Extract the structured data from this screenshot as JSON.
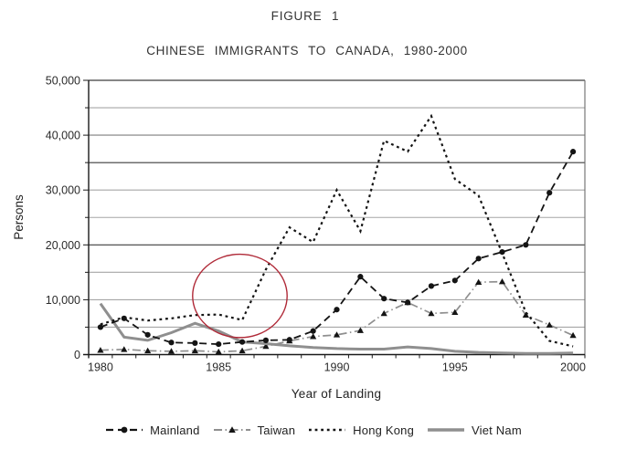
{
  "figure": {
    "title": "FIGURE 1",
    "subtitle": "CHINESE IMMIGRANTS TO CANADA, 1980-2000"
  },
  "axes": {
    "y_label": "Persons",
    "x_label": "Year of Landing",
    "y_tick_labels": [
      "0",
      "10,000",
      "20,000",
      "30,000",
      "40,000",
      "50,000"
    ],
    "x_tick_labels": [
      "1980",
      "1985",
      "1990",
      "1995",
      "2000"
    ]
  },
  "chart_data": {
    "type": "line",
    "title": "CHINESE IMMIGRANTS TO CANADA, 1980-2000",
    "xlabel": "Year of Landing",
    "ylabel": "Persons",
    "ylim": [
      0,
      50000
    ],
    "y_major_tick": 10000,
    "gridline_step": 5000,
    "grid": true,
    "legend_position": "bottom",
    "categories": [
      1980,
      1981,
      1982,
      1983,
      1984,
      1985,
      1986,
      1987,
      1988,
      1989,
      1990,
      1991,
      1992,
      1993,
      1994,
      1995,
      1996,
      1997,
      1998,
      1999,
      2000
    ],
    "series": [
      {
        "name": "Mainland",
        "color": "#141414",
        "line_style": "dashed",
        "marker": "circle",
        "values": [
          5000,
          6600,
          3600,
          2200,
          2100,
          1900,
          2300,
          2600,
          2700,
          4300,
          8200,
          14200,
          10200,
          9500,
          12500,
          13500,
          17500,
          18700,
          20000,
          29500,
          37000
        ]
      },
      {
        "name": "Taiwan",
        "color": "#8f8f8f",
        "marker_color": "#141414",
        "line_style": "dashdot",
        "marker": "triangle",
        "values": [
          800,
          950,
          700,
          600,
          700,
          500,
          700,
          1500,
          2500,
          3300,
          3600,
          4400,
          7500,
          9500,
          7500,
          7700,
          13200,
          13300,
          7200,
          5400,
          3500
        ]
      },
      {
        "name": "Hong Kong",
        "color": "#141414",
        "line_style": "dotted",
        "marker": "none",
        "values": [
          5500,
          6800,
          6200,
          6600,
          7200,
          7300,
          6300,
          15500,
          23200,
          20500,
          30000,
          22500,
          39000,
          37000,
          43500,
          32000,
          29000,
          18500,
          7700,
          2500,
          1500
        ]
      },
      {
        "name": "Viet Nam",
        "color": "#8f8f8f",
        "line_style": "solid",
        "marker": "none",
        "values": [
          9300,
          3200,
          2600,
          4000,
          5700,
          4300,
          2300,
          2000,
          1600,
          1300,
          1100,
          1000,
          1000,
          1400,
          1100,
          600,
          400,
          300,
          200,
          200,
          300
        ]
      }
    ],
    "annotation": {
      "shape": "ellipse",
      "color": "#b02a38",
      "center_year": 1985.9,
      "center_value": 10700,
      "radius_years": 2.0,
      "radius_value": 7600
    }
  }
}
